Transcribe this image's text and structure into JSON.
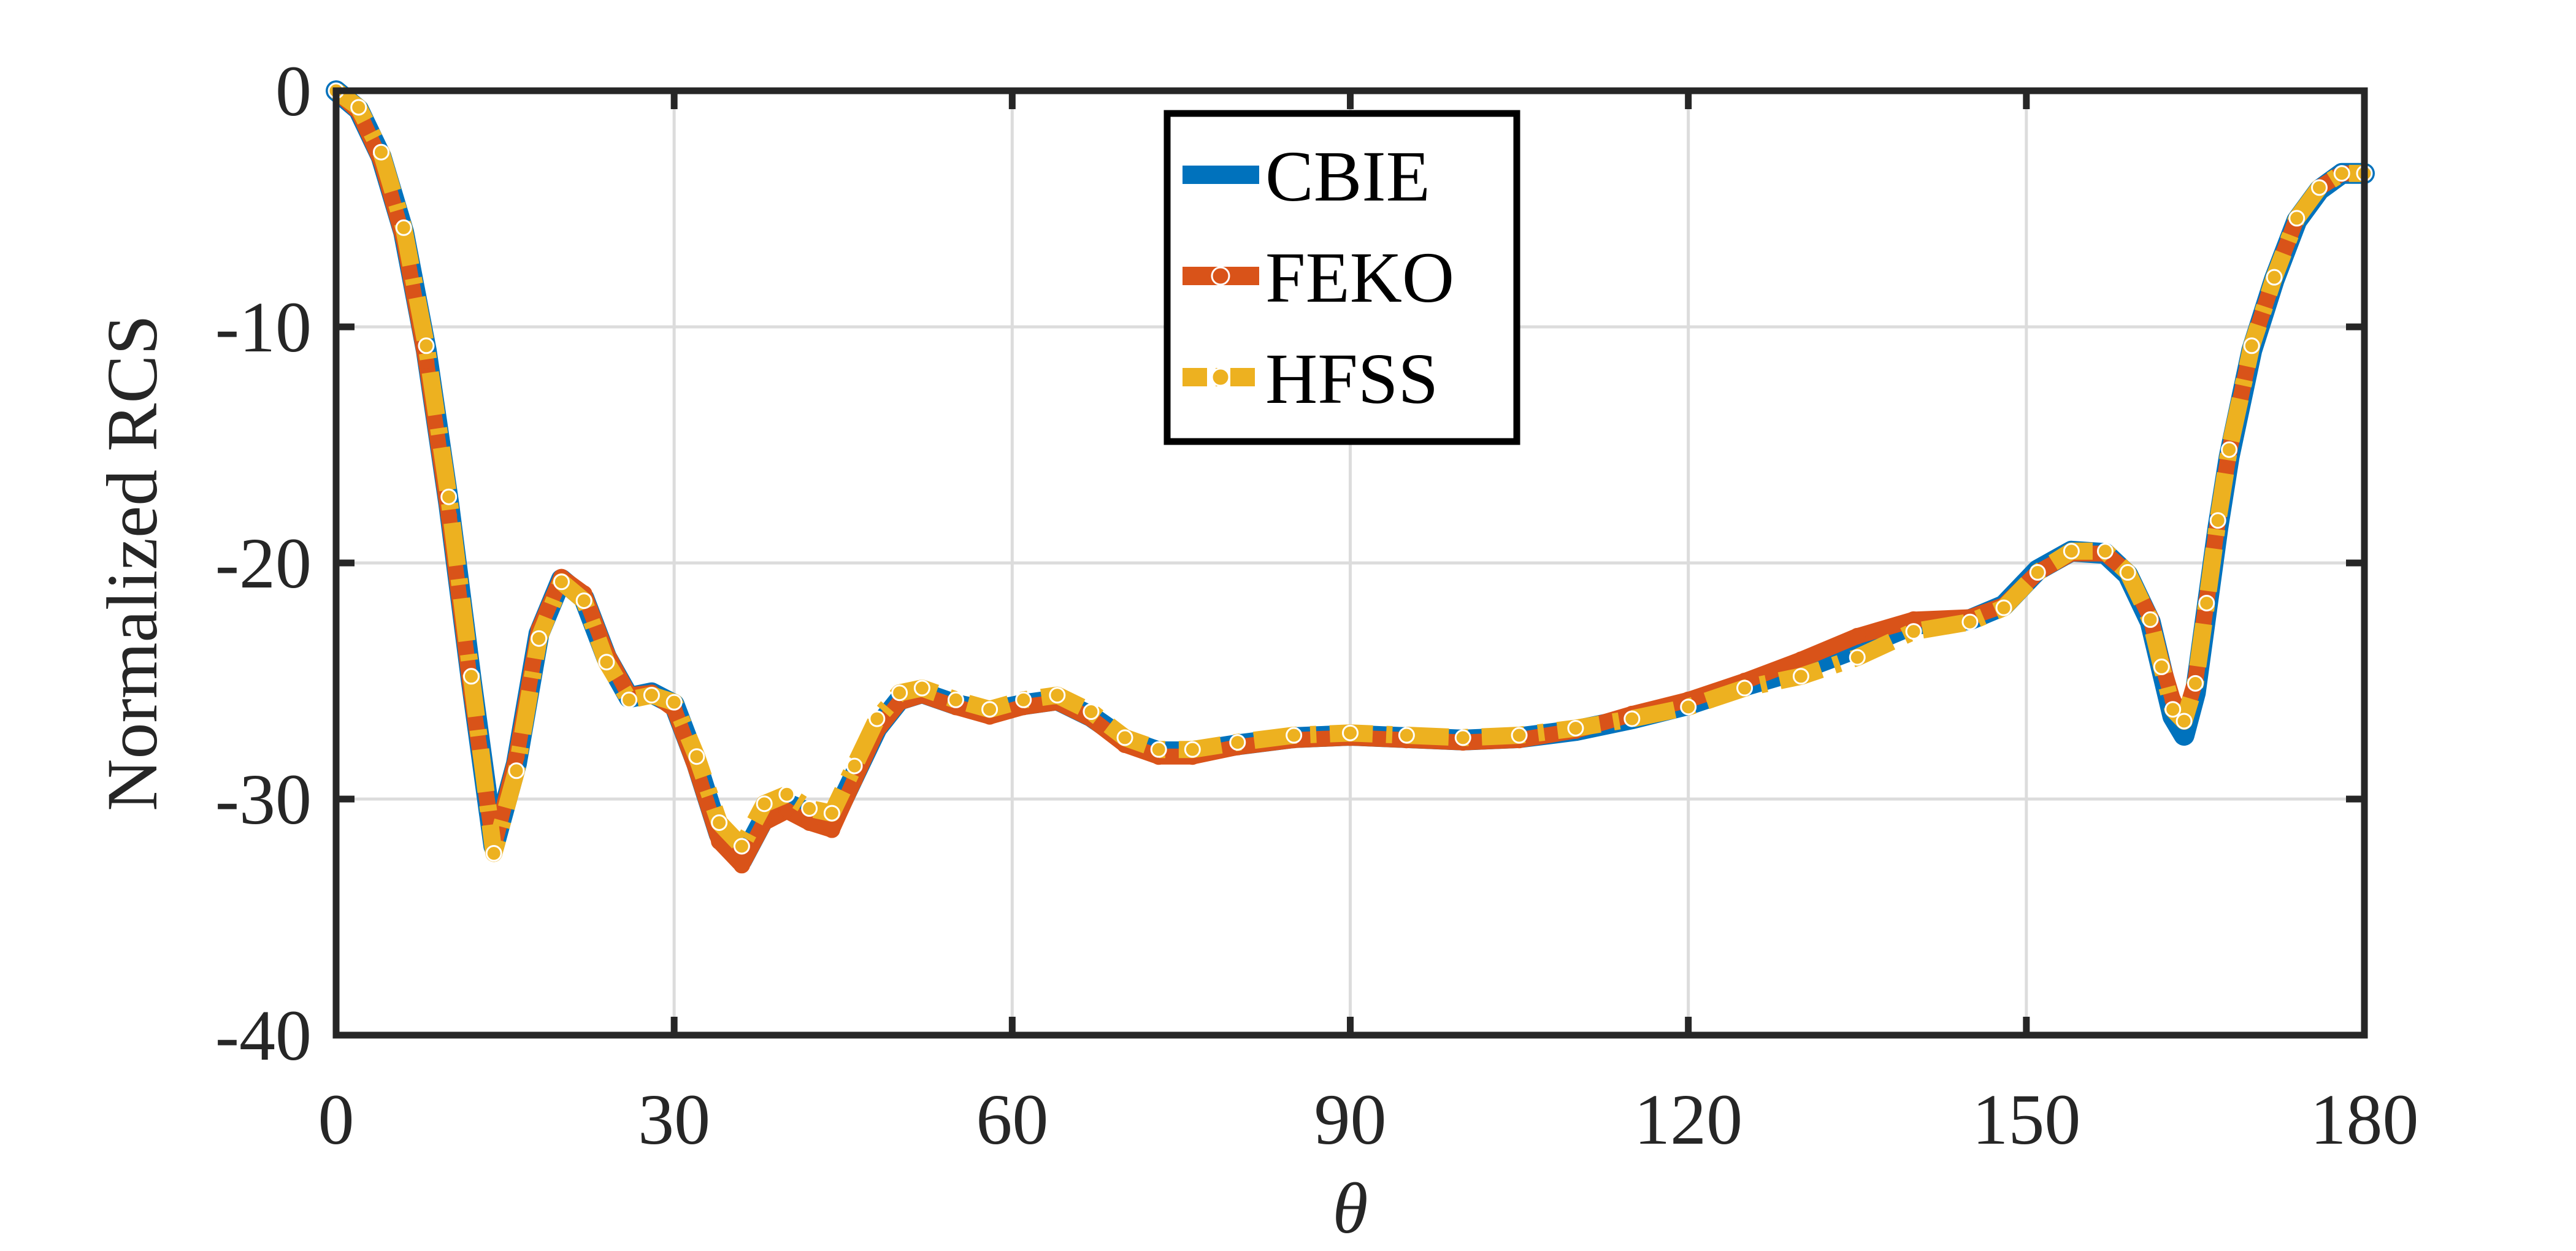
{
  "chart_data": {
    "type": "line",
    "title": "",
    "xlabel": "θ",
    "ylabel": "Normalized RCS",
    "xlim": [
      0,
      180
    ],
    "ylim": [
      -40,
      0
    ],
    "xticks": [
      0,
      30,
      60,
      90,
      120,
      150,
      180
    ],
    "yticks": [
      0,
      -10,
      -20,
      -30,
      -40
    ],
    "xtick_labels": [
      "0",
      "30",
      "60",
      "90",
      "120",
      "150",
      "180"
    ],
    "ytick_labels": [
      "0",
      "-10",
      "-20",
      "-30",
      "-40"
    ],
    "grid": true,
    "legend_position": "top-center",
    "x": [
      0,
      2,
      4,
      6,
      8,
      10,
      12,
      14,
      16,
      18,
      20,
      22,
      24,
      26,
      28,
      30,
      32,
      34,
      36,
      38,
      40,
      42,
      44,
      46,
      48,
      50,
      52,
      55,
      58,
      61,
      64,
      67,
      70,
      73,
      76,
      80,
      85,
      90,
      95,
      100,
      105,
      110,
      115,
      120,
      125,
      130,
      135,
      140,
      145,
      148,
      151,
      154,
      157,
      159,
      161,
      162,
      163,
      164,
      165,
      166,
      167,
      168,
      170,
      172,
      174,
      176,
      178,
      180
    ],
    "series": [
      {
        "name": "CBIE",
        "color": "#0072BD",
        "style": "solid",
        "values": [
          0,
          -0.8,
          -2.8,
          -6,
          -11,
          -17.5,
          -25,
          -32,
          -28.5,
          -23,
          -20.7,
          -21.5,
          -24,
          -25.7,
          -25.5,
          -26,
          -28.5,
          -31.5,
          -32.6,
          -30.8,
          -30.2,
          -30.6,
          -31,
          -29,
          -27,
          -25.8,
          -25.5,
          -26,
          -26.3,
          -26,
          -25.8,
          -26.5,
          -27.5,
          -28,
          -28,
          -27.7,
          -27.4,
          -27.3,
          -27.4,
          -27.5,
          -27.4,
          -27.1,
          -26.6,
          -26,
          -25.2,
          -24.5,
          -23.6,
          -22.6,
          -22.4,
          -21.8,
          -20.3,
          -19.5,
          -19.6,
          -20.5,
          -22.5,
          -24.5,
          -26.5,
          -27.3,
          -25.5,
          -22,
          -18.5,
          -15.5,
          -11,
          -8,
          -5.5,
          -4.2,
          -3.5,
          -3.5
        ]
      },
      {
        "name": "FEKO",
        "color": "#D95319",
        "style": "solid-dot",
        "values": [
          0,
          -0.9,
          -3,
          -6.3,
          -11.5,
          -18,
          -25.5,
          -32,
          -28.2,
          -22.8,
          -20.6,
          -21.3,
          -23.8,
          -25.6,
          -25.5,
          -26.2,
          -28.8,
          -31.8,
          -32.8,
          -31,
          -30.5,
          -31,
          -31.3,
          -29.2,
          -27.1,
          -25.9,
          -25.6,
          -26.1,
          -26.5,
          -26.1,
          -25.9,
          -26.6,
          -27.7,
          -28.2,
          -28.2,
          -27.8,
          -27.5,
          -27.4,
          -27.5,
          -27.6,
          -27.5,
          -27.1,
          -26.4,
          -25.8,
          -25,
          -24.1,
          -23.1,
          -22.4,
          -22.3,
          -21.8,
          -20.4,
          -19.6,
          -19.6,
          -20.4,
          -22.3,
          -24.2,
          -25.8,
          -26.6,
          -25,
          -21.6,
          -18.2,
          -15.3,
          -10.8,
          -7.9,
          -5.4,
          -4.1,
          -3.5,
          -3.5
        ]
      },
      {
        "name": "HFSS",
        "color": "#EDB120",
        "style": "dash-dot",
        "values": [
          0,
          -0.7,
          -2.6,
          -5.8,
          -10.8,
          -17.2,
          -24.8,
          -32.3,
          -28.8,
          -23.2,
          -20.8,
          -21.6,
          -24.2,
          -25.8,
          -25.6,
          -25.9,
          -28.2,
          -31,
          -32,
          -30.2,
          -29.8,
          -30.4,
          -30.6,
          -28.6,
          -26.6,
          -25.5,
          -25.3,
          -25.8,
          -26.2,
          -25.8,
          -25.6,
          -26.3,
          -27.4,
          -27.9,
          -27.9,
          -27.6,
          -27.3,
          -27.2,
          -27.3,
          -27.4,
          -27.3,
          -27,
          -26.6,
          -26.1,
          -25.3,
          -24.8,
          -24,
          -22.9,
          -22.5,
          -21.9,
          -20.4,
          -19.5,
          -19.5,
          -20.4,
          -22.4,
          -24.4,
          -26.2,
          -26.7,
          -25.1,
          -21.7,
          -18.2,
          -15.2,
          -10.8,
          -7.9,
          -5.4,
          -4.1,
          -3.5,
          -3.5
        ]
      }
    ]
  }
}
